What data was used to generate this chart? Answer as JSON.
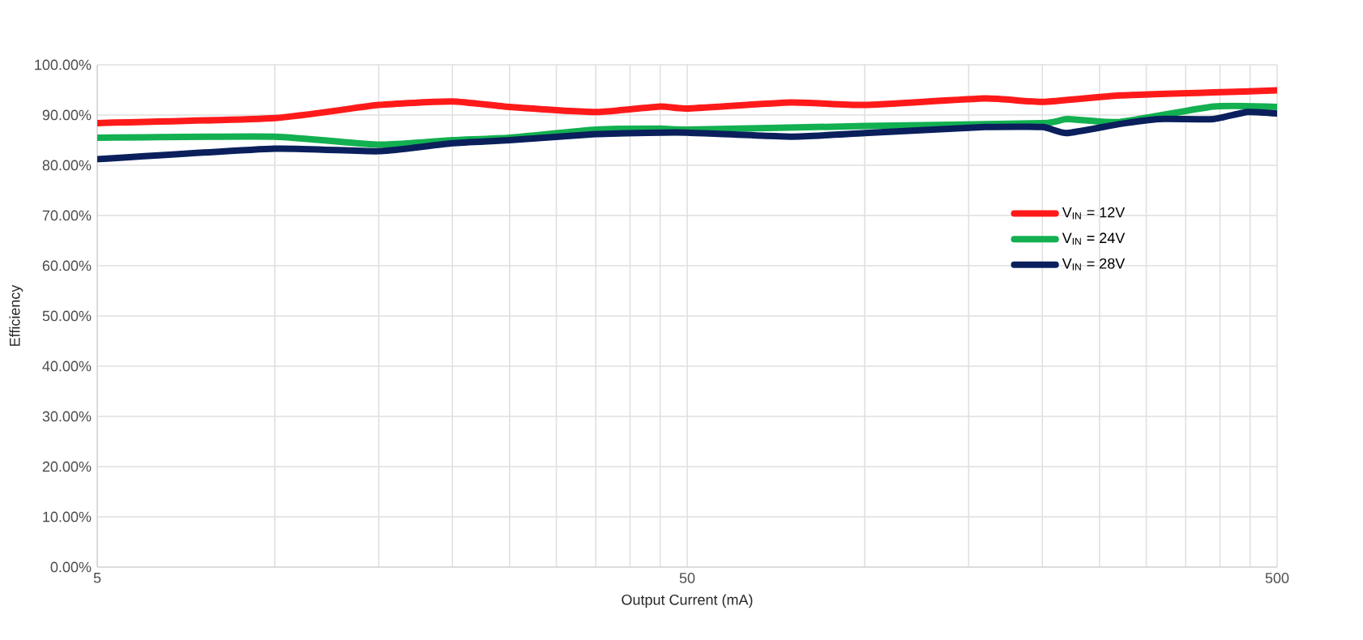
{
  "chart_data": {
    "type": "line",
    "xlabel": "Output Current (mA)",
    "ylabel": "Efficiency",
    "log": "x",
    "grid": true,
    "legend": "right",
    "marker": "none",
    "line_style": "solid",
    "xlim": [
      5,
      500
    ],
    "xticks": [
      5,
      {
        "value": 10,
        "label": null
      },
      {
        "value": 15,
        "label": null
      },
      {
        "value": 20,
        "label": null
      },
      {
        "value": 25,
        "label": null
      },
      {
        "value": 30,
        "label": null
      },
      {
        "value": 35,
        "label": null
      },
      {
        "value": 40,
        "label": null
      },
      {
        "value": 45,
        "label": null
      },
      50,
      {
        "value": 100,
        "label": null
      },
      {
        "value": 150,
        "label": null
      },
      {
        "value": 200,
        "label": null
      },
      {
        "value": 250,
        "label": null
      },
      {
        "value": 300,
        "label": null
      },
      {
        "value": 350,
        "label": null
      },
      {
        "value": 400,
        "label": null
      },
      {
        "value": 450,
        "label": null
      },
      500
    ],
    "ylim": [
      0,
      100
    ],
    "yticks": [
      {
        "value": 0,
        "label": "0.00%"
      },
      {
        "value": 10,
        "label": "10.00%"
      },
      {
        "value": 20,
        "label": "20.00%"
      },
      {
        "value": 30,
        "label": "30.00%"
      },
      {
        "value": 40,
        "label": "40.00%"
      },
      {
        "value": 50,
        "label": "50.00%"
      },
      {
        "value": 60,
        "label": "60.00%"
      },
      {
        "value": 70,
        "label": "70.00%"
      },
      {
        "value": 80,
        "label": "80.00%"
      },
      {
        "value": 90,
        "label": "90.00%"
      },
      {
        "value": 100,
        "label": "100.00%"
      }
    ],
    "series": [
      {
        "name": "V$_{IN}$ = 12V",
        "color": "#ff1a1a",
        "x": [
          5,
          10,
          15,
          20,
          25,
          35,
          45,
          50,
          75,
          100,
          160,
          200,
          270,
          390,
          500
        ],
        "values": [
          88.4,
          89.4,
          92,
          92.7,
          91.6,
          90.6,
          91.7,
          91.3,
          92.5,
          92,
          93.3,
          92.6,
          93.9,
          94.5,
          94.9
        ]
      },
      {
        "name": "V$_{IN}$ = 24V",
        "color": "#12b050",
        "x": [
          5,
          10,
          15,
          20,
          25,
          35,
          45,
          50,
          100,
          200,
          220,
          270,
          390,
          500
        ],
        "values": [
          85.5,
          85.7,
          84.1,
          85,
          85.5,
          87.1,
          87.3,
          87.1,
          87.8,
          88.4,
          89.2,
          88.6,
          91.7,
          91.6
        ]
      },
      {
        "name": "V$_{IN}$ = 28V",
        "color": "#0a1f5c",
        "x": [
          5,
          10,
          15,
          20,
          25,
          35,
          45,
          50,
          75,
          100,
          160,
          200,
          220,
          270,
          315,
          390,
          445,
          500
        ],
        "values": [
          81.2,
          83.3,
          82.8,
          84.4,
          85,
          86.2,
          86.5,
          86.5,
          85.7,
          86.4,
          87.6,
          87.6,
          86.4,
          88.2,
          89.2,
          89.2,
          90.6,
          90.3
        ]
      }
    ]
  }
}
